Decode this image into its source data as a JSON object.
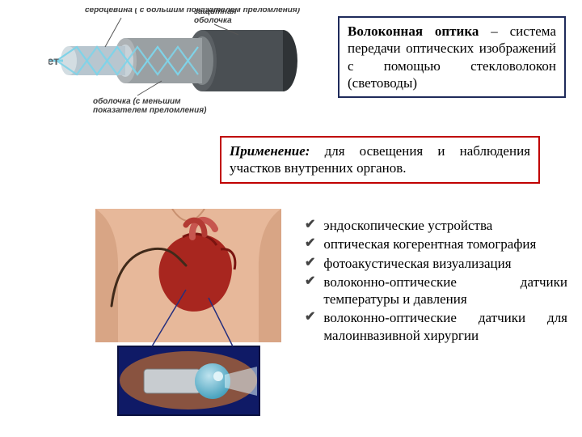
{
  "colors": {
    "def_border": "#1f2b5b",
    "app_border": "#c00000",
    "text": "#000000",
    "background": "#ffffff",
    "fiber_dark": "#4a4f53",
    "fiber_mid": "#9aa0a3",
    "fiber_core": "#b8c6cf",
    "fiber_light": "#7fd3e8",
    "skin": "#e7b89a",
    "heart_red": "#a8261f",
    "heart_dark": "#7a1410",
    "cath_inset_bg": "#0f1a66",
    "cath_tip": "#5eb9d6"
  },
  "fiber": {
    "label_light": "Свет",
    "label_core": "сердцевина ( с большим показателем преломления)",
    "label_shell": "защитная оболочка",
    "label_clad": "оболочка (с меньшим показателем преломления)",
    "label_fontsize": 10
  },
  "definition": {
    "title": "Волоконная оптика",
    "body": " – система передачи оптических изображений с помощью стекловолокон (световоды)",
    "fontsize": 17
  },
  "application": {
    "title": "Применение:",
    "body": " для освещения и наблюдения участков внутренних органов.",
    "fontsize": 17
  },
  "bullets": {
    "items": [
      "эндоскопические устройства",
      "оптическая когерентная томография",
      "фотоакустическая визуализация",
      "волоконно-оптические датчики температуры и давления",
      "волоконно-оптические датчики для малоинвазивной хирургии"
    ],
    "marker": "✔",
    "fontsize": 17
  }
}
